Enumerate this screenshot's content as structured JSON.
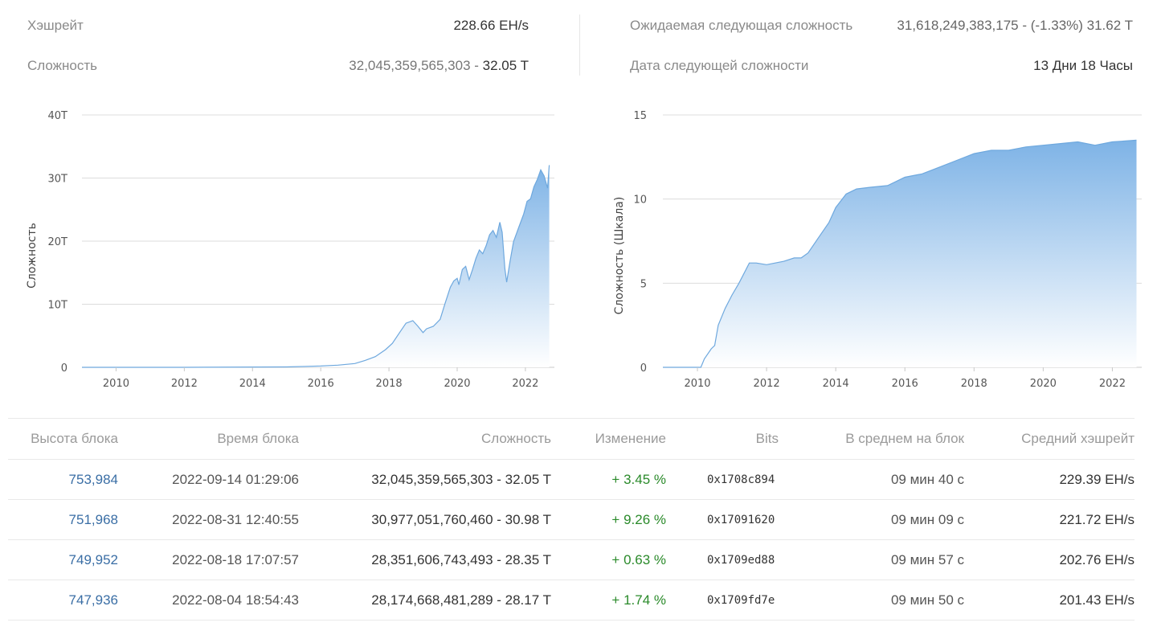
{
  "stats": {
    "hashrate_label": "Хэшрейт",
    "hashrate_value": "228.66 EH/s",
    "difficulty_label": "Сложность",
    "difficulty_full": "32,045,359,565,303",
    "difficulty_sep": " - ",
    "difficulty_short": "32.05 T",
    "next_difficulty_label": "Ожидаемая следующая сложность",
    "next_difficulty_value": "31,618,249,383,175 - (-1.33%) 31.62 T",
    "next_date_label": "Дата следующей сложности",
    "next_date_value": "13 Дни 18 Часы"
  },
  "chart_data": [
    {
      "type": "area",
      "title": "",
      "xlabel": "",
      "ylabel": "Сложность",
      "ylim": [
        0,
        40
      ],
      "y_ticks": [
        "0",
        "10T",
        "20T",
        "30T",
        "40T"
      ],
      "x_ticks": [
        "2010",
        "2012",
        "2014",
        "2016",
        "2018",
        "2020",
        "2022"
      ],
      "grid": true,
      "x": [
        2009.0,
        2012.0,
        2015.0,
        2016.0,
        2016.5,
        2017.0,
        2017.3,
        2017.6,
        2017.9,
        2018.1,
        2018.3,
        2018.5,
        2018.7,
        2018.85,
        2019.0,
        2019.1,
        2019.3,
        2019.5,
        2019.65,
        2019.8,
        2019.9,
        2020.0,
        2020.05,
        2020.15,
        2020.25,
        2020.35,
        2020.45,
        2020.55,
        2020.65,
        2020.75,
        2020.85,
        2020.95,
        2021.05,
        2021.15,
        2021.25,
        2021.32,
        2021.4,
        2021.45,
        2021.55,
        2021.65,
        2021.8,
        2021.95,
        2022.05,
        2022.15,
        2022.25,
        2022.35,
        2022.45,
        2022.55,
        2022.65,
        2022.7
      ],
      "y": [
        0,
        0.0001,
        0.06,
        0.2,
        0.35,
        0.6,
        1.1,
        1.7,
        2.8,
        3.8,
        5.4,
        7.0,
        7.4,
        6.5,
        5.5,
        6.1,
        6.5,
        7.6,
        10.2,
        12.7,
        13.7,
        14.1,
        13.1,
        15.5,
        16.0,
        13.9,
        15.5,
        17.3,
        18.6,
        18.0,
        19.3,
        21.0,
        21.7,
        20.6,
        23.0,
        21.4,
        15.6,
        13.5,
        16.8,
        19.9,
        22.1,
        24.3,
        26.3,
        26.7,
        28.6,
        29.8,
        31.3,
        30.3,
        28.4,
        32.05
      ]
    },
    {
      "type": "area",
      "title": "",
      "xlabel": "",
      "ylabel": "Сложность (Шкала)",
      "scale": "log10",
      "ylim": [
        0,
        15
      ],
      "y_ticks": [
        "0",
        "5",
        "10",
        "15"
      ],
      "x_ticks": [
        "2010",
        "2012",
        "2014",
        "2016",
        "2018",
        "2020",
        "2022"
      ],
      "grid": true,
      "x": [
        2009.0,
        2010.1,
        2010.2,
        2010.4,
        2010.5,
        2010.6,
        2010.8,
        2011.0,
        2011.2,
        2011.4,
        2011.5,
        2011.7,
        2012.0,
        2012.5,
        2012.8,
        2013.0,
        2013.2,
        2013.5,
        2013.8,
        2014.0,
        2014.3,
        2014.6,
        2015.0,
        2015.5,
        2016.0,
        2016.5,
        2017.0,
        2017.5,
        2018.0,
        2018.5,
        2019.0,
        2019.5,
        2020.0,
        2020.5,
        2021.0,
        2021.5,
        2022.0,
        2022.7
      ],
      "y": [
        0,
        0,
        0.5,
        1.1,
        1.3,
        2.5,
        3.5,
        4.3,
        5.0,
        5.8,
        6.2,
        6.2,
        6.1,
        6.3,
        6.5,
        6.5,
        6.8,
        7.7,
        8.6,
        9.5,
        10.3,
        10.6,
        10.7,
        10.8,
        11.3,
        11.5,
        11.9,
        12.3,
        12.7,
        12.9,
        12.9,
        13.1,
        13.2,
        13.3,
        13.4,
        13.2,
        13.4,
        13.5
      ]
    }
  ],
  "table": {
    "headers": [
      "Высота блока",
      "Время блока",
      "Сложность",
      "Изменение",
      "Bits",
      "В среднем на блок",
      "Средний хэшрейт"
    ],
    "rows": [
      {
        "height": "753,984",
        "time": "2022-09-14 01:29:06",
        "difficulty": "32,045,359,565,303 - 32.05 T",
        "change": "+ 3.45 %",
        "bits": "0x1708c894",
        "avg_block": "09 мин 40 с",
        "avg_hashrate": "229.39 EH/s"
      },
      {
        "height": "751,968",
        "time": "2022-08-31 12:40:55",
        "difficulty": "30,977,051,760,460 - 30.98 T",
        "change": "+ 9.26 %",
        "bits": "0x17091620",
        "avg_block": "09 мин 09 с",
        "avg_hashrate": "221.72 EH/s"
      },
      {
        "height": "749,952",
        "time": "2022-08-18 17:07:57",
        "difficulty": "28,351,606,743,493 - 28.35 T",
        "change": "+ 0.63 %",
        "bits": "0x1709ed88",
        "avg_block": "09 мин 57 с",
        "avg_hashrate": "202.76 EH/s"
      },
      {
        "height": "747,936",
        "time": "2022-08-04 18:54:43",
        "difficulty": "28,174,668,481,289 - 28.17 T",
        "change": "+ 1.74 %",
        "bits": "0x1709fd7e",
        "avg_block": "09 мин 50 с",
        "avg_hashrate": "201.43 EH/s"
      }
    ]
  },
  "colors": {
    "area_top": "#7eb3e6",
    "area_bottom": "#ffffff",
    "line": "#6ea8de",
    "grid": "#dcdcdc",
    "link": "#3a6ea5",
    "positive": "#2a8a2a"
  }
}
